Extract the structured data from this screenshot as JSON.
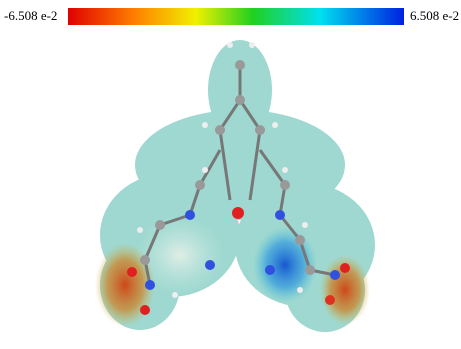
{
  "colorbar": {
    "min_label": "-6.508 e-2",
    "max_label": "6.508 e-2"
  }
}
